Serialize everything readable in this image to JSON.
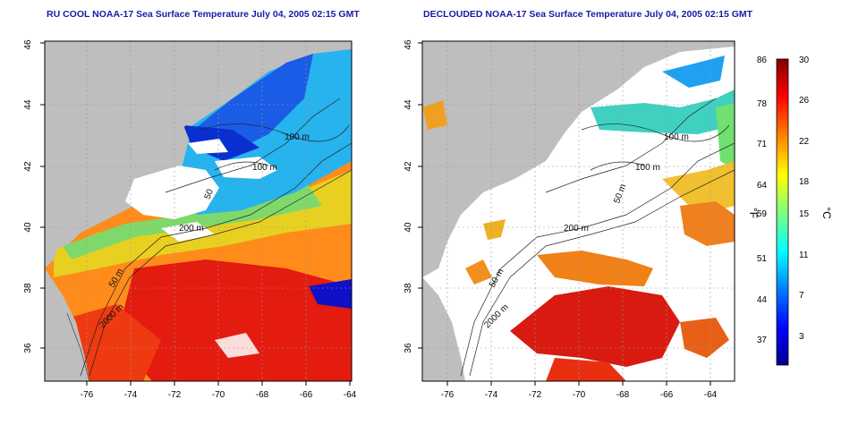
{
  "panels": [
    {
      "title": "RU COOL NOAA-17 Sea Surface Temperature July 04, 2005 02:15 GMT",
      "x_ticks": [
        "-76",
        "-74",
        "-72",
        "-70",
        "-68",
        "-66",
        "-64"
      ],
      "y_ticks": [
        "36",
        "38",
        "40",
        "42",
        "44",
        "46"
      ],
      "contour_labels": [
        "100 m",
        "100 m",
        "50",
        "200 m",
        "50 m",
        "2000 m"
      ]
    },
    {
      "title": "DECLOUDED NOAA-17 Sea Surface Temperature July 04, 2005 02:15 GMT",
      "x_ticks": [
        "-76",
        "-74",
        "-72",
        "-70",
        "-68",
        "-66",
        "-64"
      ],
      "y_ticks": [
        "36",
        "38",
        "40",
        "42",
        "44",
        "46"
      ],
      "contour_labels": [
        "100 m",
        "100 m",
        "50 m",
        "200 m",
        "50 m",
        "2000 m"
      ]
    }
  ],
  "colorbar": {
    "fahrenheit_label": "°F",
    "celsius_label": "°C",
    "fahrenheit_ticks": [
      "86",
      "78",
      "71",
      "64",
      "59",
      "51",
      "44",
      "37"
    ],
    "celsius_ticks": [
      "30",
      "26",
      "22",
      "18",
      "15",
      "11",
      "7",
      "3"
    ],
    "colors": [
      "#00008f",
      "#0000ff",
      "#0080ff",
      "#00ffff",
      "#80ff80",
      "#ffff00",
      "#ff8000",
      "#ff0000",
      "#800000"
    ]
  },
  "colors": {
    "land": "#bebebe",
    "cloud": "#ffffff",
    "title": "#1a1aa6"
  }
}
